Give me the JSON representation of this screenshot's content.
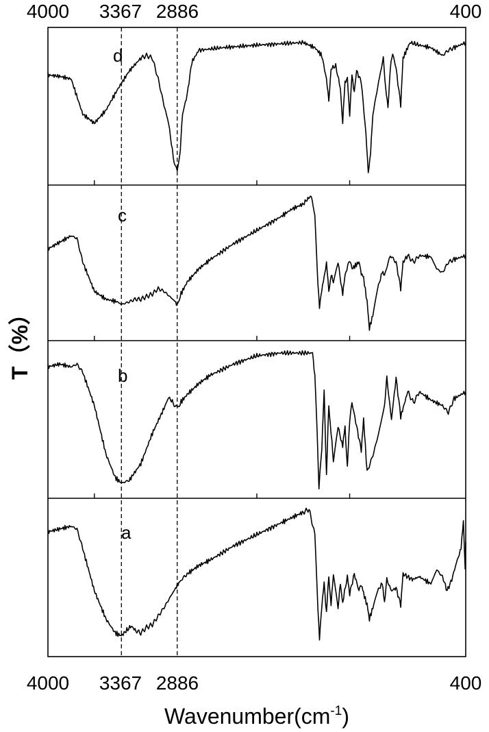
{
  "chart_data": {
    "type": "line",
    "xlabel": "Wavenumber(cm",
    "xlabel_superscript": "-1",
    "xlabel_close": ")",
    "ylabel": "T（%）",
    "xlim": [
      4000,
      400
    ],
    "x_axis": "reversed",
    "grid": false,
    "legend": "none",
    "top_tick_labels": [
      "4000",
      "3367",
      "2886",
      "400"
    ],
    "bottom_tick_labels": [
      "4000",
      "3367",
      "2886",
      "400"
    ],
    "tick_values": [
      4000,
      3367,
      2886,
      400
    ],
    "minor_ticks": [
      3600,
      2200,
      1400
    ],
    "reference_lines": [
      3367,
      2886
    ],
    "series": [
      {
        "name": "d",
        "points": [
          [
            4000,
            0.25
          ],
          [
            3900,
            0.26
          ],
          [
            3800,
            0.28
          ],
          [
            3700,
            0.55
          ],
          [
            3600,
            0.62
          ],
          [
            3500,
            0.52
          ],
          [
            3400,
            0.36
          ],
          [
            3300,
            0.22
          ],
          [
            3200,
            0.12
          ],
          [
            3150,
            0.1
          ],
          [
            3100,
            0.12
          ],
          [
            3050,
            0.28
          ],
          [
            3000,
            0.48
          ],
          [
            2960,
            0.62
          ],
          [
            2920,
            0.88
          ],
          [
            2886,
            1.0
          ],
          [
            2860,
            0.82
          ],
          [
            2840,
            0.55
          ],
          [
            2800,
            0.4
          ],
          [
            2760,
            0.15
          ],
          [
            2700,
            0.06
          ],
          [
            2500,
            0.04
          ],
          [
            2200,
            0.02
          ],
          [
            1800,
            0.0
          ],
          [
            1700,
            0.04
          ],
          [
            1640,
            0.1
          ],
          [
            1600,
            0.28
          ],
          [
            1580,
            0.45
          ],
          [
            1560,
            0.2
          ],
          [
            1520,
            0.18
          ],
          [
            1480,
            0.35
          ],
          [
            1460,
            0.62
          ],
          [
            1440,
            0.3
          ],
          [
            1420,
            0.28
          ],
          [
            1400,
            0.55
          ],
          [
            1380,
            0.25
          ],
          [
            1360,
            0.38
          ],
          [
            1340,
            0.22
          ],
          [
            1300,
            0.3
          ],
          [
            1260,
            0.7
          ],
          [
            1240,
            1.0
          ],
          [
            1220,
            0.85
          ],
          [
            1200,
            0.55
          ],
          [
            1150,
            0.3
          ],
          [
            1110,
            0.12
          ],
          [
            1090,
            0.35
          ],
          [
            1070,
            0.5
          ],
          [
            1050,
            0.2
          ],
          [
            1030,
            0.08
          ],
          [
            1000,
            0.2
          ],
          [
            960,
            0.48
          ],
          [
            940,
            0.12
          ],
          [
            880,
            0.0
          ],
          [
            800,
            0.02
          ],
          [
            700,
            0.04
          ],
          [
            600,
            0.1
          ],
          [
            550,
            0.06
          ],
          [
            500,
            0.04
          ],
          [
            400,
            0.0
          ]
        ]
      },
      {
        "name": "c",
        "points": [
          [
            4000,
            0.4
          ],
          [
            3900,
            0.35
          ],
          [
            3800,
            0.3
          ],
          [
            3750,
            0.32
          ],
          [
            3700,
            0.5
          ],
          [
            3600,
            0.72
          ],
          [
            3500,
            0.78
          ],
          [
            3400,
            0.8
          ],
          [
            3367,
            0.82
          ],
          [
            3300,
            0.8
          ],
          [
            3250,
            0.78
          ],
          [
            3200,
            0.78
          ],
          [
            3150,
            0.76
          ],
          [
            3100,
            0.74
          ],
          [
            3050,
            0.7
          ],
          [
            3000,
            0.72
          ],
          [
            2950,
            0.76
          ],
          [
            2900,
            0.8
          ],
          [
            2886,
            0.83
          ],
          [
            2860,
            0.75
          ],
          [
            2800,
            0.65
          ],
          [
            2700,
            0.55
          ],
          [
            2600,
            0.48
          ],
          [
            2400,
            0.36
          ],
          [
            2200,
            0.26
          ],
          [
            2000,
            0.16
          ],
          [
            1900,
            0.1
          ],
          [
            1800,
            0.06
          ],
          [
            1760,
            0.02
          ],
          [
            1730,
            0.0
          ],
          [
            1700,
            0.15
          ],
          [
            1680,
            0.55
          ],
          [
            1660,
            0.85
          ],
          [
            1640,
            0.7
          ],
          [
            1620,
            0.62
          ],
          [
            1600,
            0.5
          ],
          [
            1580,
            0.72
          ],
          [
            1560,
            0.6
          ],
          [
            1540,
            0.65
          ],
          [
            1500,
            0.5
          ],
          [
            1460,
            0.75
          ],
          [
            1440,
            0.6
          ],
          [
            1400,
            0.48
          ],
          [
            1380,
            0.55
          ],
          [
            1320,
            0.5
          ],
          [
            1300,
            0.58
          ],
          [
            1280,
            0.62
          ],
          [
            1250,
            0.8
          ],
          [
            1230,
            1.0
          ],
          [
            1200,
            0.9
          ],
          [
            1160,
            0.7
          ],
          [
            1120,
            0.58
          ],
          [
            1100,
            0.6
          ],
          [
            1050,
            0.45
          ],
          [
            1000,
            0.5
          ],
          [
            960,
            0.7
          ],
          [
            940,
            0.5
          ],
          [
            900,
            0.45
          ],
          [
            850,
            0.5
          ],
          [
            800,
            0.45
          ],
          [
            700,
            0.46
          ],
          [
            650,
            0.55
          ],
          [
            600,
            0.58
          ],
          [
            550,
            0.5
          ],
          [
            500,
            0.48
          ],
          [
            400,
            0.45
          ]
        ]
      },
      {
        "name": "b",
        "points": [
          [
            4000,
            0.12
          ],
          [
            3900,
            0.1
          ],
          [
            3800,
            0.12
          ],
          [
            3750,
            0.1
          ],
          [
            3700,
            0.16
          ],
          [
            3600,
            0.4
          ],
          [
            3500,
            0.75
          ],
          [
            3420,
            0.92
          ],
          [
            3367,
            0.96
          ],
          [
            3300,
            0.94
          ],
          [
            3200,
            0.82
          ],
          [
            3100,
            0.6
          ],
          [
            3000,
            0.42
          ],
          [
            2960,
            0.34
          ],
          [
            2920,
            0.38
          ],
          [
            2886,
            0.42
          ],
          [
            2860,
            0.38
          ],
          [
            2800,
            0.32
          ],
          [
            2700,
            0.24
          ],
          [
            2600,
            0.18
          ],
          [
            2400,
            0.1
          ],
          [
            2200,
            0.04
          ],
          [
            2000,
            0.02
          ],
          [
            1800,
            0.02
          ],
          [
            1720,
            0.02
          ],
          [
            1700,
            0.18
          ],
          [
            1680,
            0.6
          ],
          [
            1665,
            1.0
          ],
          [
            1640,
            0.7
          ],
          [
            1620,
            0.3
          ],
          [
            1600,
            0.9
          ],
          [
            1580,
            0.4
          ],
          [
            1560,
            0.6
          ],
          [
            1540,
            0.8
          ],
          [
            1500,
            0.55
          ],
          [
            1460,
            0.7
          ],
          [
            1440,
            0.55
          ],
          [
            1420,
            0.85
          ],
          [
            1400,
            0.5
          ],
          [
            1380,
            0.38
          ],
          [
            1340,
            0.55
          ],
          [
            1300,
            0.72
          ],
          [
            1280,
            0.5
          ],
          [
            1250,
            0.88
          ],
          [
            1200,
            0.76
          ],
          [
            1150,
            0.6
          ],
          [
            1100,
            0.4
          ],
          [
            1080,
            0.2
          ],
          [
            1040,
            0.5
          ],
          [
            1000,
            0.2
          ],
          [
            960,
            0.48
          ],
          [
            900,
            0.3
          ],
          [
            850,
            0.38
          ],
          [
            800,
            0.3
          ],
          [
            700,
            0.36
          ],
          [
            600,
            0.4
          ],
          [
            550,
            0.45
          ],
          [
            500,
            0.35
          ],
          [
            400,
            0.3
          ]
        ]
      },
      {
        "name": "a",
        "points": [
          [
            4000,
            0.18
          ],
          [
            3900,
            0.16
          ],
          [
            3800,
            0.14
          ],
          [
            3750,
            0.16
          ],
          [
            3700,
            0.3
          ],
          [
            3600,
            0.6
          ],
          [
            3500,
            0.8
          ],
          [
            3420,
            0.9
          ],
          [
            3367,
            0.92
          ],
          [
            3320,
            0.88
          ],
          [
            3280,
            0.85
          ],
          [
            3250,
            0.88
          ],
          [
            3200,
            0.9
          ],
          [
            3150,
            0.86
          ],
          [
            3100,
            0.84
          ],
          [
            3050,
            0.78
          ],
          [
            3000,
            0.72
          ],
          [
            2950,
            0.65
          ],
          [
            2900,
            0.58
          ],
          [
            2886,
            0.56
          ],
          [
            2850,
            0.52
          ],
          [
            2800,
            0.48
          ],
          [
            2700,
            0.42
          ],
          [
            2600,
            0.38
          ],
          [
            2400,
            0.28
          ],
          [
            2200,
            0.2
          ],
          [
            2000,
            0.12
          ],
          [
            1900,
            0.08
          ],
          [
            1800,
            0.04
          ],
          [
            1750,
            0.02
          ],
          [
            1700,
            0.2
          ],
          [
            1680,
            0.6
          ],
          [
            1660,
            0.95
          ],
          [
            1640,
            0.7
          ],
          [
            1620,
            0.55
          ],
          [
            1600,
            0.75
          ],
          [
            1580,
            0.5
          ],
          [
            1560,
            0.7
          ],
          [
            1540,
            0.48
          ],
          [
            1500,
            0.72
          ],
          [
            1480,
            0.55
          ],
          [
            1460,
            0.68
          ],
          [
            1420,
            0.5
          ],
          [
            1400,
            0.62
          ],
          [
            1360,
            0.48
          ],
          [
            1320,
            0.6
          ],
          [
            1300,
            0.55
          ],
          [
            1280,
            0.62
          ],
          [
            1250,
            0.7
          ],
          [
            1230,
            0.8
          ],
          [
            1200,
            0.72
          ],
          [
            1160,
            0.6
          ],
          [
            1120,
            0.55
          ],
          [
            1100,
            0.68
          ],
          [
            1080,
            0.52
          ],
          [
            1040,
            0.6
          ],
          [
            1000,
            0.58
          ],
          [
            960,
            0.7
          ],
          [
            940,
            0.48
          ],
          [
            900,
            0.5
          ],
          [
            860,
            0.52
          ],
          [
            800,
            0.5
          ],
          [
            700,
            0.55
          ],
          [
            650,
            0.45
          ],
          [
            600,
            0.5
          ],
          [
            560,
            0.6
          ],
          [
            520,
            0.52
          ],
          [
            480,
            0.4
          ],
          [
            440,
            0.3
          ],
          [
            420,
            0.1
          ],
          [
            405,
            0.45
          ],
          [
            400,
            0.25
          ]
        ]
      }
    ]
  }
}
